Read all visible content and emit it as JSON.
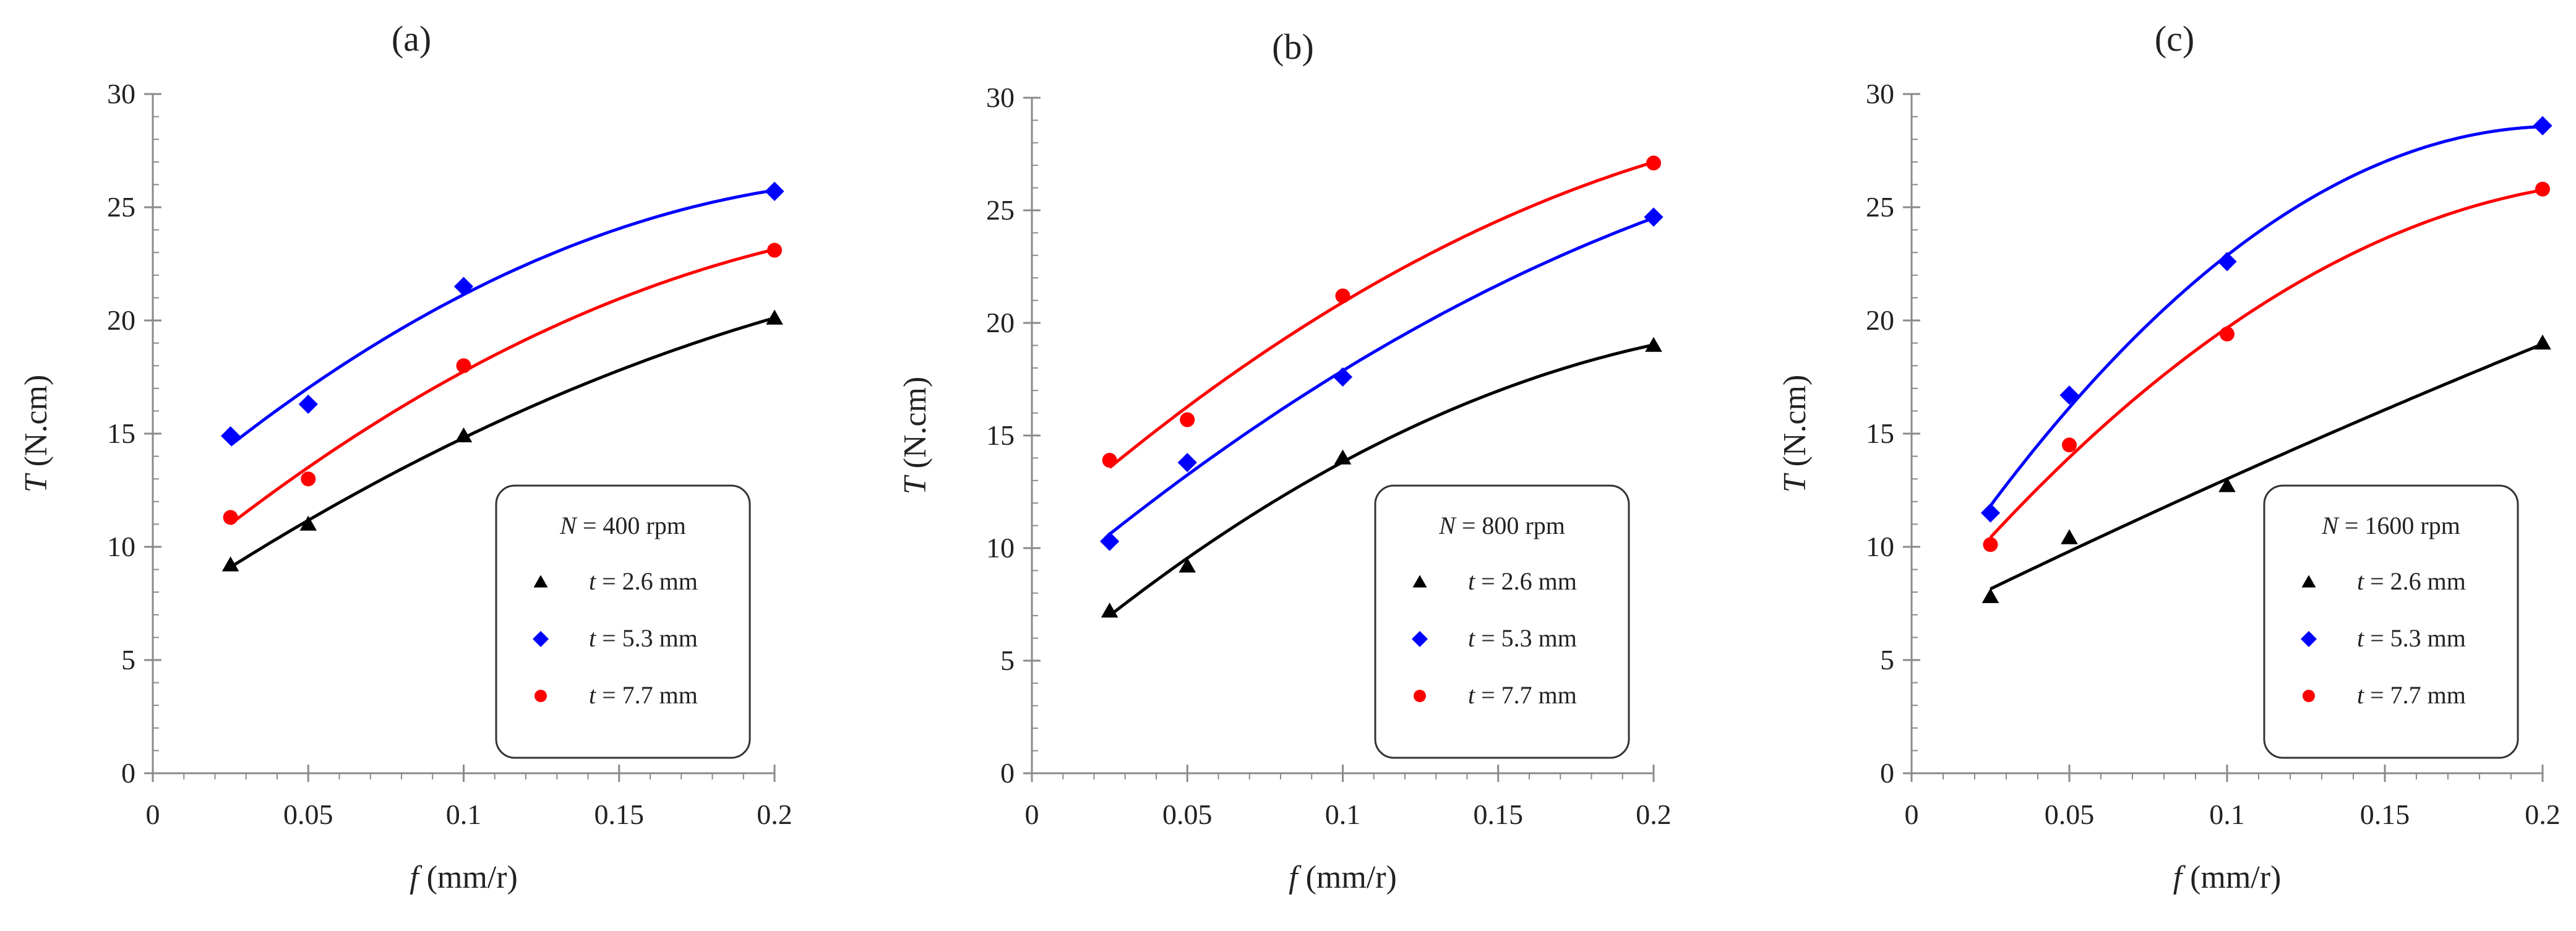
{
  "chart_data": [
    {
      "type": "scatter",
      "title": "(a)",
      "xlabel_var": "f",
      "xlabel_unit": " (mm/r)",
      "ylabel_var": "T",
      "ylabel_unit": " (N.cm)",
      "xlim": [
        0,
        0.2
      ],
      "ylim": [
        0,
        30
      ],
      "xticks": [
        0,
        0.05,
        0.1,
        0.15,
        0.2
      ],
      "xtick_labels": [
        "0",
        "0.05",
        "0.1",
        "0.15",
        "0.2"
      ],
      "yticks": [
        0,
        5,
        10,
        15,
        20,
        25,
        30
      ],
      "ytick_labels": [
        "0",
        "5",
        "10",
        "15",
        "20",
        "25",
        "30"
      ],
      "grid": false,
      "legend": {
        "placement": "bottom-right",
        "header_var": "N",
        "header_rest": " = 400 rpm",
        "entries": [
          {
            "var": "t",
            "rest": " = 2.6 mm"
          },
          {
            "var": "t",
            "rest": " = 5.3 mm"
          },
          {
            "var": "t",
            "rest": " = 7.7 mm"
          }
        ]
      },
      "x": [
        0.025,
        0.05,
        0.1,
        0.2
      ],
      "series": [
        {
          "name": "t = 2.6 mm",
          "marker": "triangle",
          "color": "#000000",
          "values": [
            9.2,
            11.0,
            14.9,
            20.1
          ]
        },
        {
          "name": "t = 5.3 mm",
          "marker": "diamond",
          "color": "#0000ff",
          "values": [
            14.9,
            16.3,
            21.5,
            25.7
          ]
        },
        {
          "name": "t = 7.7 mm",
          "marker": "circle",
          "color": "#ff0000",
          "values": [
            11.3,
            13.0,
            18.0,
            23.1
          ]
        }
      ]
    },
    {
      "type": "scatter",
      "title": "(b)",
      "xlabel_var": "f",
      "xlabel_unit": " (mm/r)",
      "ylabel_var": "T",
      "ylabel_unit": " (N.cm)",
      "xlim": [
        0,
        0.2
      ],
      "ylim": [
        0,
        30
      ],
      "xticks": [
        0,
        0.05,
        0.1,
        0.15,
        0.2
      ],
      "xtick_labels": [
        "0",
        "0.05",
        "0.1",
        "0.15",
        "0.2"
      ],
      "yticks": [
        0,
        5,
        10,
        15,
        20,
        25,
        30
      ],
      "ytick_labels": [
        "0",
        "5",
        "10",
        "15",
        "20",
        "25",
        "30"
      ],
      "grid": false,
      "legend": {
        "placement": "bottom-right",
        "header_var": "N",
        "header_rest": " = 800 rpm",
        "entries": [
          {
            "var": "t",
            "rest": " = 2.6 mm"
          },
          {
            "var": "t",
            "rest": " = 5.3 mm"
          },
          {
            "var": "t",
            "rest": " = 7.7 mm"
          }
        ]
      },
      "x": [
        0.025,
        0.05,
        0.1,
        0.2
      ],
      "series": [
        {
          "name": "t = 2.6 mm",
          "marker": "triangle",
          "color": "#000000",
          "values": [
            7.2,
            9.2,
            14.0,
            19.0
          ]
        },
        {
          "name": "t = 5.3 mm",
          "marker": "diamond",
          "color": "#0000ff",
          "values": [
            10.3,
            13.8,
            17.6,
            24.7
          ]
        },
        {
          "name": "t = 7.7 mm",
          "marker": "circle",
          "color": "#ff0000",
          "values": [
            13.9,
            15.7,
            21.2,
            27.1
          ]
        }
      ]
    },
    {
      "type": "scatter",
      "title": "(c)",
      "xlabel_var": "f",
      "xlabel_unit": " (mm/r)",
      "ylabel_var": "T",
      "ylabel_unit": " (N.cm)",
      "xlim": [
        0,
        0.2
      ],
      "ylim": [
        0,
        30
      ],
      "xticks": [
        0,
        0.05,
        0.1,
        0.15,
        0.2
      ],
      "xtick_labels": [
        "0",
        "0.05",
        "0.1",
        "0.15",
        "0.2"
      ],
      "yticks": [
        0,
        5,
        10,
        15,
        20,
        25,
        30
      ],
      "ytick_labels": [
        "0",
        "5",
        "10",
        "15",
        "20",
        "25",
        "30"
      ],
      "grid": false,
      "legend": {
        "placement": "bottom-right",
        "header_var": "N",
        "header_rest": " = 1600 rpm",
        "entries": [
          {
            "var": "t",
            "rest": " = 2.6 mm"
          },
          {
            "var": "t",
            "rest": " = 5.3 mm"
          },
          {
            "var": "t",
            "rest": " = 7.7 mm"
          }
        ]
      },
      "x": [
        0.025,
        0.05,
        0.1,
        0.2
      ],
      "series": [
        {
          "name": "t = 2.6 mm",
          "marker": "triangle",
          "color": "#000000",
          "values": [
            7.8,
            10.4,
            12.7,
            19.0
          ]
        },
        {
          "name": "t = 5.3 mm",
          "marker": "diamond",
          "color": "#0000ff",
          "values": [
            11.5,
            16.7,
            22.6,
            28.6
          ]
        },
        {
          "name": "t = 7.7 mm",
          "marker": "circle",
          "color": "#ff0000",
          "values": [
            10.1,
            14.5,
            19.4,
            25.8
          ]
        }
      ]
    }
  ]
}
